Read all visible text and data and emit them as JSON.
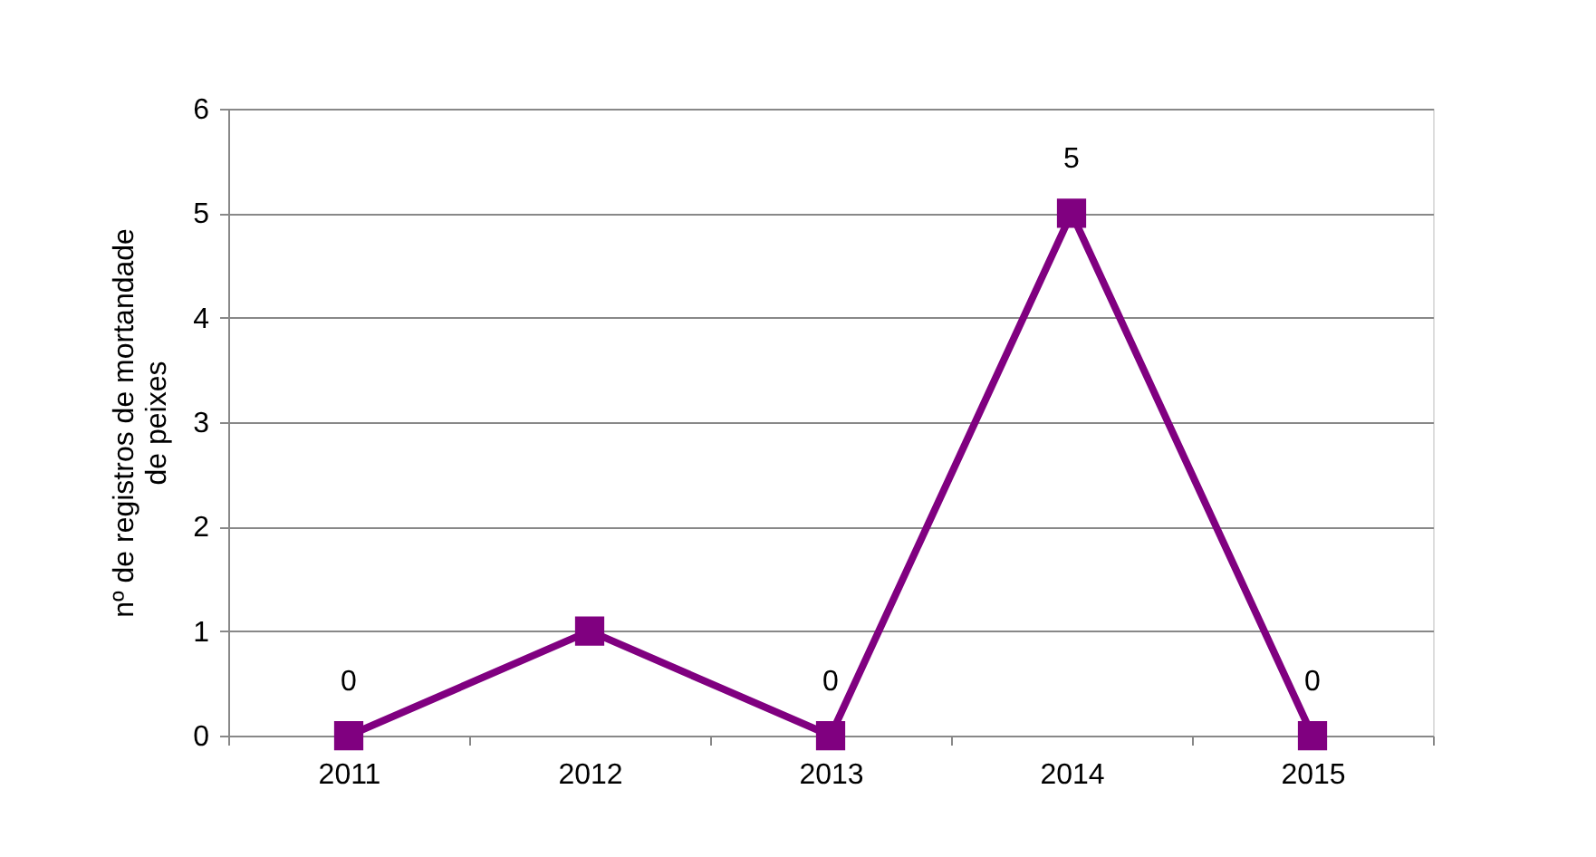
{
  "chart_data": {
    "type": "line",
    "ylabel": "nº de registros de mortandade de peixes",
    "categories": [
      "2011",
      "2012",
      "2013",
      "2014",
      "2015"
    ],
    "series": [
      {
        "color": "#800080",
        "values": [
          0,
          1,
          0,
          5,
          0
        ],
        "value_labels": [
          "0",
          null,
          "0",
          "5",
          "0"
        ]
      }
    ],
    "ylim": [
      0,
      6
    ],
    "yticks": [
      0,
      1,
      2,
      3,
      4,
      5,
      6
    ],
    "grid": "y",
    "marker": "square",
    "line_style": "solid"
  }
}
